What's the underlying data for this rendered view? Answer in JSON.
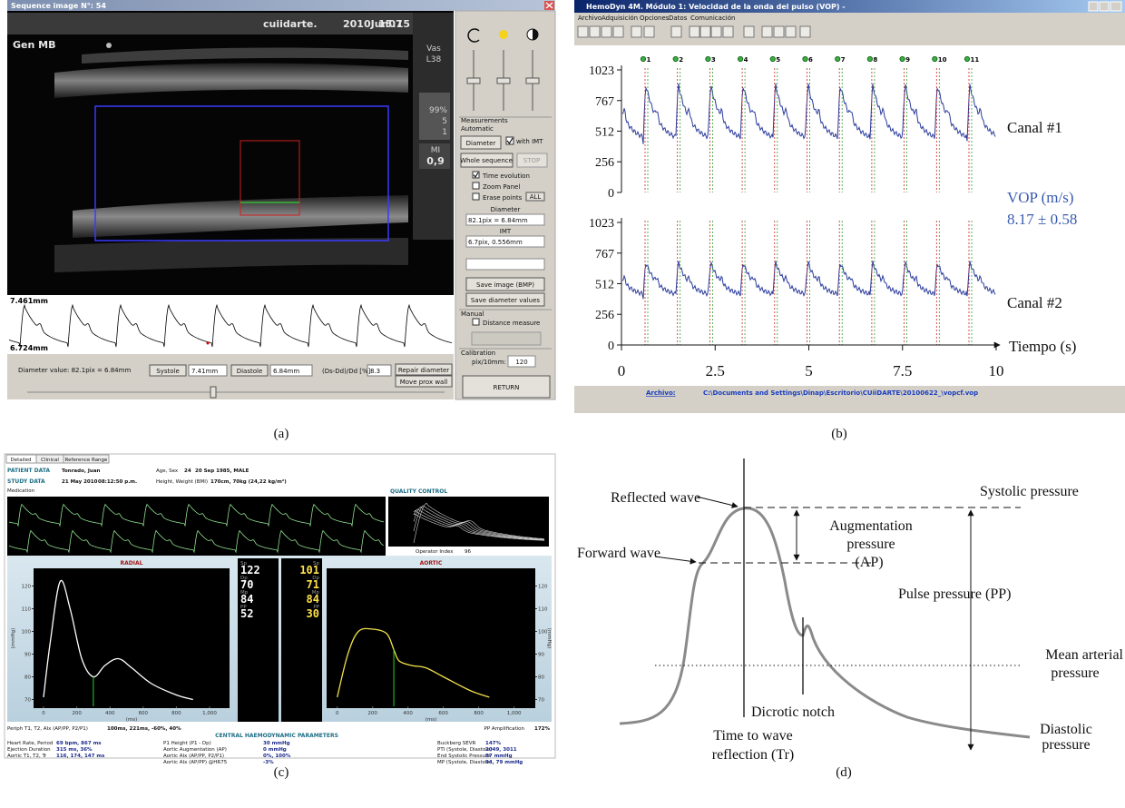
{
  "captions": [
    "(a)",
    "(b)",
    "(c)",
    "(d)"
  ],
  "panel_a": {
    "window_title": "Sequence image N°: 54",
    "overlay": {
      "brand": "cuiidarte.",
      "date": "2010Jun07",
      "time": "15:15",
      "mode": "Gen MB",
      "probe": [
        "Vas",
        "L38"
      ],
      "gain": "99%",
      "values": [
        "5",
        "1"
      ],
      "mi_label": "MI",
      "mi": "0,9"
    },
    "measure_top": "7.461mm",
    "measure_bottom": "6.724mm",
    "status": {
      "diameter": "Diameter value: 82.1pix = 6.84mm",
      "systole_btn": "Systole",
      "systole": "7.41mm",
      "diastole_btn": "Diastole",
      "diastole": "6.84mm",
      "ratio_label": "(Ds-Dd)/Dd [%]:",
      "ratio": "8.3",
      "repair": "Repair diameter",
      "move": "Move prox wall"
    },
    "side": {
      "measurements": "Measurements",
      "automatic": "Automatic",
      "diameter_btn": "Diameter",
      "with_imt": "with IMT",
      "whole": "Whole sequence",
      "stop": "STOP",
      "time_evolution": "Time evolution",
      "zoom": "Zoom Panel",
      "erase": "Erase points",
      "all": "ALL",
      "diameter_label": "Diameter",
      "diameter_value": "82.1pix = 6.84mm",
      "imt_label": "IMT",
      "imt_value": "6.7pix, 0.556mm",
      "save_image": "Save image (BMP)",
      "save_diameter": "Save diameter values",
      "manual": "Manual",
      "distance": "Distance measure",
      "calibration": "Calibration",
      "pix": "pix/10mm:",
      "pix_value": "120",
      "return": "RETURN"
    }
  },
  "panel_b": {
    "window_title": "HemoDyn 4M. Módulo 1: Velocidad de la onda del pulso (VOP) -",
    "menu": [
      "Archivo",
      "Adquisición",
      "Opciones",
      "Datos",
      "Comunicación"
    ],
    "markers": [
      "1",
      "2",
      "3",
      "4",
      "5",
      "6",
      "7",
      "8",
      "9",
      "10",
      "11"
    ],
    "channels": [
      "Canal #1",
      "Canal #2"
    ],
    "vop_label": "VOP (m/s)",
    "vop_value": "8.17 ± 0.58",
    "axes": {
      "x_label": "Tiempo (s)",
      "ylim": [
        0,
        1023
      ],
      "yticks": [
        0,
        256,
        512,
        767,
        1023
      ],
      "xlim": [
        0,
        10
      ],
      "xticks": [
        0,
        2.5,
        5,
        7.5,
        10
      ]
    },
    "file_label": "Archivo:",
    "file_path": "C:\\Documents and Settings\\Dinap\\Escritorio\\CUiiDARTE\\20100622_\\vopcf.vop"
  },
  "panel_c": {
    "tabs": [
      "Detailed",
      "Clinical",
      "Reference Range"
    ],
    "patient": {
      "label": "PATIENT DATA",
      "name": "Tonrado, Juan",
      "age_sex_label": "Age, Sex",
      "age": "24",
      "dob_sex": "20 Sep 1985, MALE"
    },
    "study": {
      "label": "STUDY DATA",
      "date": "21 May 2010",
      "time": "08:12:50 p.m.",
      "hw_label": "Height, Weight (BMI)",
      "hw": "170cm, 70kg (24,22 kg/m²)",
      "medication": "Medication"
    },
    "quality": {
      "label": "QUALITY CONTROL",
      "operator_label": "Operator Index",
      "operator": "96"
    },
    "radial": {
      "title": "RADIAL",
      "y_label": "(mmHg)",
      "x_label": "(ms)",
      "ylim": [
        67,
        127
      ],
      "yticks": [
        70,
        80,
        90,
        100,
        110,
        120
      ],
      "xlim": [
        -60,
        1120
      ],
      "xticks": [
        0,
        200,
        400,
        600,
        800,
        {
          "value": 1000,
          "label": "1,000"
        }
      ]
    },
    "aortic": {
      "title": "AORTIC",
      "y_label": "(mmHg)",
      "x_label": "(ms)",
      "ylim": [
        67,
        127
      ],
      "yticks": [
        70,
        80,
        90,
        100,
        110,
        120
      ],
      "xlim": [
        -60,
        1120
      ],
      "xticks": [
        0,
        200,
        400,
        600,
        800,
        {
          "value": 1000,
          "label": "1,000"
        }
      ]
    },
    "radial_values": [
      {
        "label": "Sp",
        "value": "122"
      },
      {
        "label": "Dp",
        "value": "70"
      },
      {
        "label": "Mp",
        "value": "84"
      },
      {
        "label": "PP",
        "value": "52"
      }
    ],
    "aortic_values": [
      {
        "label": "Sp",
        "value": "101"
      },
      {
        "label": "Dp",
        "value": "71"
      },
      {
        "label": "Mp",
        "value": "84"
      },
      {
        "label": "PP",
        "value": "30"
      }
    ],
    "periph": {
      "label": "Periph T1, T2, AIx (AP/PP, P2/P1)",
      "value": "100ms, 221ms, -60%, 40%",
      "pp_amp_label": "PP Amplification",
      "pp_amp": "172%"
    },
    "central_title": "CENTRAL HAEMODYNAMIC PARAMETERS",
    "params": [
      [
        {
          "label": "Heart Rate, Period",
          "value": "69 bpm, 867 ms"
        },
        {
          "label": "Ejection Duration",
          "value": "315 ms, 36%"
        },
        {
          "label": "Aortic T1, T2, Tr",
          "value": "116, 174, 147 ms"
        }
      ],
      [
        {
          "label": "P1 Height (P1 - Dp)",
          "value": "30 mmHg"
        },
        {
          "label": "Aortic Augmentation (AP)",
          "value": "0 mmHg"
        },
        {
          "label": "Aortic AIx (AP/PP, P2/P1)",
          "value": "0%, 100%"
        },
        {
          "label": "Aortic AIx (AP/PP) @HR75",
          "value": "-3%"
        }
      ],
      [
        {
          "label": "Buckberg SEVR",
          "value": "147%"
        },
        {
          "label": "PTI (Systole, Diastole)",
          "value": "2049, 3011"
        },
        {
          "label": "End Systolic Pressure",
          "value": "87 mmHg"
        },
        {
          "label": "MP (Systole, Diastole)",
          "value": "94, 79 mmHg"
        }
      ]
    ]
  },
  "panel_d": {
    "reflected_wave": "Reflected wave",
    "systolic": "Systolic pressure",
    "augmentation": [
      "Augmentation",
      "pressure",
      "(AP)"
    ],
    "forward_wave": "Forward wave",
    "pulse_pressure": "Pulse pressure (PP)",
    "mean_arterial": [
      "Mean arterial",
      "pressure"
    ],
    "dicrotic": "Dicrotic notch",
    "time_to_reflection": [
      "Time to wave",
      "reflection (Tr)"
    ],
    "diastolic": [
      "Diastolic",
      "pressure"
    ]
  }
}
